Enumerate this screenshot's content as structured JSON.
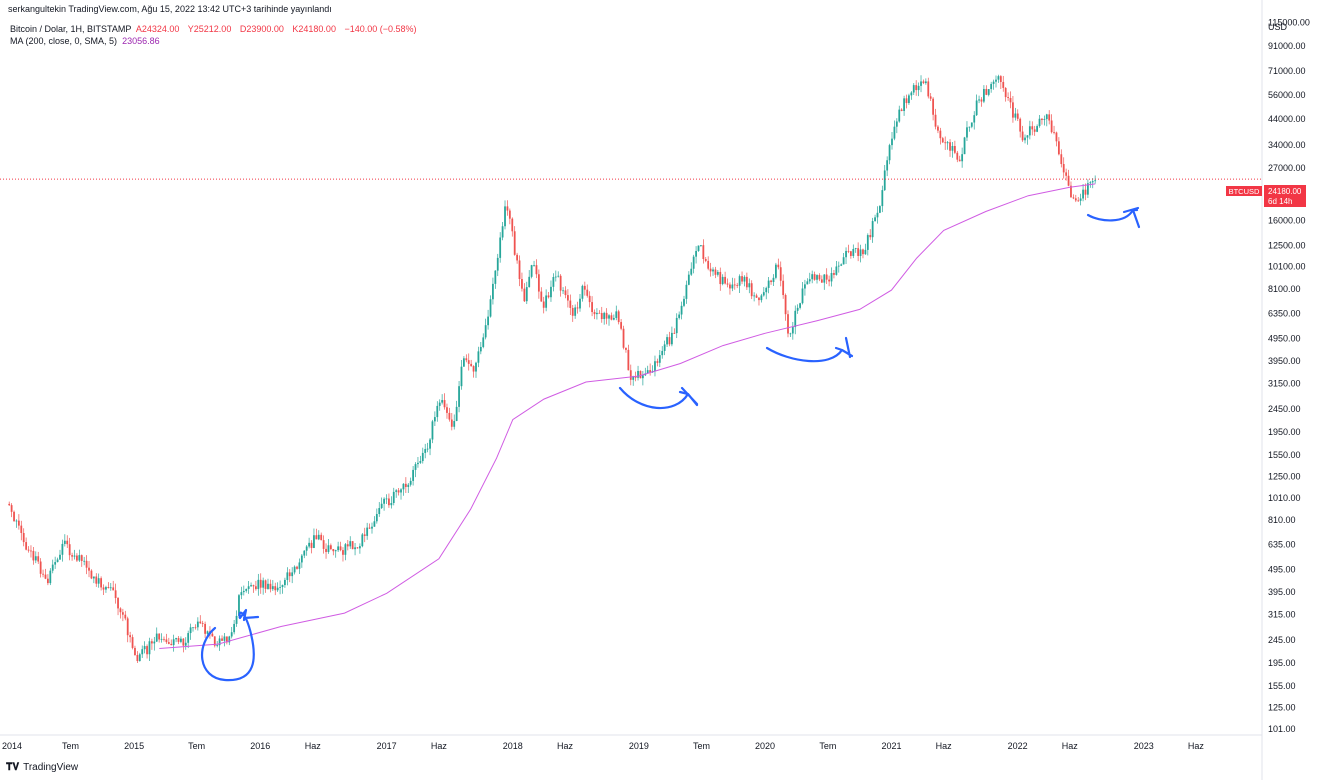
{
  "publish_line": "serkangultekin TradingView.com, Ağu 15, 2022 13:42 UTC+3 tarihinde yayınlandı",
  "legend": {
    "symbol": "Bitcoin / Dolar, 1H, BITSTAMP",
    "open": "A24324.00",
    "high": "Y25212.00",
    "low": "D23900.00",
    "close": "K24180.00",
    "change": "−140.00 (−0.58%)",
    "ma_label": "MA (200, close, 0, SMA, 5)",
    "ma_value": "23056.86"
  },
  "price_badge": {
    "ticker": "BTCUSD",
    "price": "24180.00",
    "countdown": "6d 14h",
    "color": "#f23645"
  },
  "logo_text": "TradingView",
  "colors": {
    "up": "#26a69a",
    "down": "#ef5350",
    "ma": "#d05ce3",
    "annotation": "#2962ff",
    "price_line": "#f23645"
  },
  "chart_data": {
    "type": "candlestick",
    "scale": "log",
    "y_unit": "USD",
    "x_tick_labels": [
      "2014",
      "Tem",
      "2015",
      "Tem",
      "2016",
      "Haz",
      "2017",
      "Haz",
      "2018",
      "Haz",
      "2019",
      "Tem",
      "2020",
      "Tem",
      "2021",
      "Haz",
      "2022",
      "Haz",
      "2023",
      "Haz"
    ],
    "y_tick_labels": [
      "115000.00",
      "91000.00",
      "71000.00",
      "56000.00",
      "44000.00",
      "34000.00",
      "27000.00",
      "16000.00",
      "12500.00",
      "10100.00",
      "8100.00",
      "6350.00",
      "4950.00",
      "3950.00",
      "3150.00",
      "2450.00",
      "1950.00",
      "1550.00",
      "1250.00",
      "1010.00",
      "810.00",
      "635.00",
      "495.00",
      "395.00",
      "315.00",
      "245.00",
      "195.00",
      "155.00",
      "125.00",
      "101.00"
    ],
    "ylim": [
      95,
      118000
    ],
    "last_price": 24180,
    "price_series": [
      [
        "2014-01-01",
        950
      ],
      [
        "2014-03-01",
        600
      ],
      [
        "2014-05-01",
        450
      ],
      [
        "2014-06-15",
        640
      ],
      [
        "2014-09-01",
        480
      ],
      [
        "2014-11-15",
        370
      ],
      [
        "2015-01-15",
        200
      ],
      [
        "2015-03-15",
        260
      ],
      [
        "2015-05-15",
        235
      ],
      [
        "2015-07-15",
        290
      ],
      [
        "2015-09-01",
        230
      ],
      [
        "2015-10-20",
        270
      ],
      [
        "2015-11-05",
        400
      ],
      [
        "2015-12-15",
        430
      ],
      [
        "2016-03-01",
        420
      ],
      [
        "2016-06-15",
        680
      ],
      [
        "2016-08-01",
        580
      ],
      [
        "2016-10-15",
        640
      ],
      [
        "2016-12-31",
        960
      ],
      [
        "2017-03-01",
        1150
      ],
      [
        "2017-05-01",
        1700
      ],
      [
        "2017-06-10",
        2800
      ],
      [
        "2017-07-15",
        1900
      ],
      [
        "2017-08-15",
        4300
      ],
      [
        "2017-09-15",
        3500
      ],
      [
        "2017-11-01",
        7000
      ],
      [
        "2017-12-17",
        19000
      ],
      [
        "2018-02-06",
        7000
      ],
      [
        "2018-03-01",
        10500
      ],
      [
        "2018-04-05",
        6800
      ],
      [
        "2018-05-05",
        9600
      ],
      [
        "2018-07-01",
        6300
      ],
      [
        "2018-07-25",
        8200
      ],
      [
        "2018-09-01",
        6400
      ],
      [
        "2018-11-01",
        6300
      ],
      [
        "2018-12-15",
        3300
      ],
      [
        "2019-02-01",
        3500
      ],
      [
        "2019-04-15",
        5300
      ],
      [
        "2019-06-26",
        12500
      ],
      [
        "2019-08-01",
        10000
      ],
      [
        "2019-09-26",
        8000
      ],
      [
        "2019-11-01",
        9200
      ],
      [
        "2019-12-15",
        7100
      ],
      [
        "2020-02-14",
        10300
      ],
      [
        "2020-03-13",
        4900
      ],
      [
        "2020-05-01",
        8800
      ],
      [
        "2020-07-15",
        9200
      ],
      [
        "2020-09-01",
        11700
      ],
      [
        "2020-10-15",
        11500
      ],
      [
        "2020-12-01",
        19000
      ],
      [
        "2021-01-08",
        40000
      ],
      [
        "2021-02-20",
        56000
      ],
      [
        "2021-04-14",
        63500
      ],
      [
        "2021-05-20",
        37000
      ],
      [
        "2021-07-20",
        30000
      ],
      [
        "2021-09-06",
        51000
      ],
      [
        "2021-11-10",
        67500
      ],
      [
        "2022-01-22",
        36000
      ],
      [
        "2022-03-28",
        47000
      ],
      [
        "2022-05-10",
        30000
      ],
      [
        "2022-06-18",
        19000
      ],
      [
        "2022-07-15",
        21000
      ],
      [
        "2022-08-14",
        24500
      ]
    ],
    "ma_200_series": [
      [
        "2015-03-15",
        225
      ],
      [
        "2015-09-01",
        235
      ],
      [
        "2016-03-01",
        280
      ],
      [
        "2016-09-01",
        320
      ],
      [
        "2017-01-01",
        390
      ],
      [
        "2017-06-01",
        550
      ],
      [
        "2017-09-01",
        900
      ],
      [
        "2017-11-15",
        1500
      ],
      [
        "2018-01-01",
        2200
      ],
      [
        "2018-04-01",
        2700
      ],
      [
        "2018-08-01",
        3200
      ],
      [
        "2019-01-01",
        3400
      ],
      [
        "2019-05-01",
        3850
      ],
      [
        "2019-09-01",
        4600
      ],
      [
        "2020-01-01",
        5200
      ],
      [
        "2020-06-01",
        5900
      ],
      [
        "2020-10-01",
        6600
      ],
      [
        "2021-01-01",
        8000
      ],
      [
        "2021-03-15",
        11000
      ],
      [
        "2021-06-01",
        14500
      ],
      [
        "2021-10-01",
        17500
      ],
      [
        "2022-02-01",
        20500
      ],
      [
        "2022-06-01",
        22300
      ],
      [
        "2022-08-14",
        23057
      ]
    ]
  }
}
